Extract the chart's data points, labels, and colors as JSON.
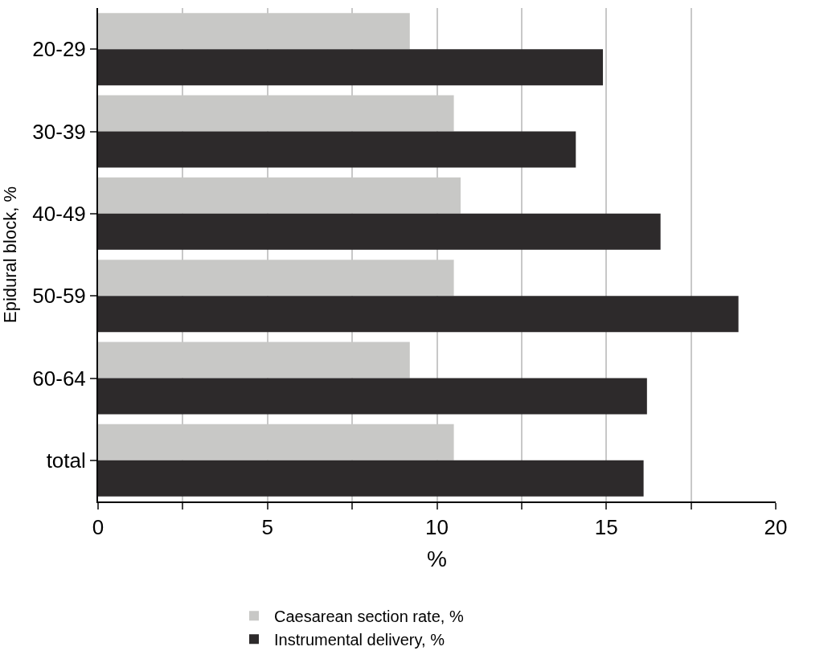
{
  "chart_data": {
    "type": "bar",
    "orientation": "horizontal",
    "ylabel": "Epidural block, %",
    "xlabel": "%",
    "categories": [
      "20-29",
      "30-39",
      "40-49",
      "50-59",
      "60-64",
      "total"
    ],
    "series": [
      {
        "name": "Caesarean section rate, %",
        "color": "#c8c8c6",
        "values": [
          9.2,
          10.5,
          10.7,
          10.5,
          9.2,
          10.5
        ]
      },
      {
        "name": "Instrumental delivery, %",
        "color": "#2d2a2b",
        "values": [
          14.9,
          14.1,
          16.6,
          18.9,
          16.2,
          16.1
        ]
      }
    ],
    "xlim": [
      0,
      20
    ],
    "xticks": [
      0,
      {
        "value": 2.5,
        "label": null
      },
      5,
      {
        "value": 7.5,
        "label": null
      },
      10,
      {
        "value": 12.5,
        "label": null
      },
      15,
      {
        "value": 17.5,
        "label": null
      },
      20
    ],
    "grid": "x",
    "legend": "bottom"
  }
}
